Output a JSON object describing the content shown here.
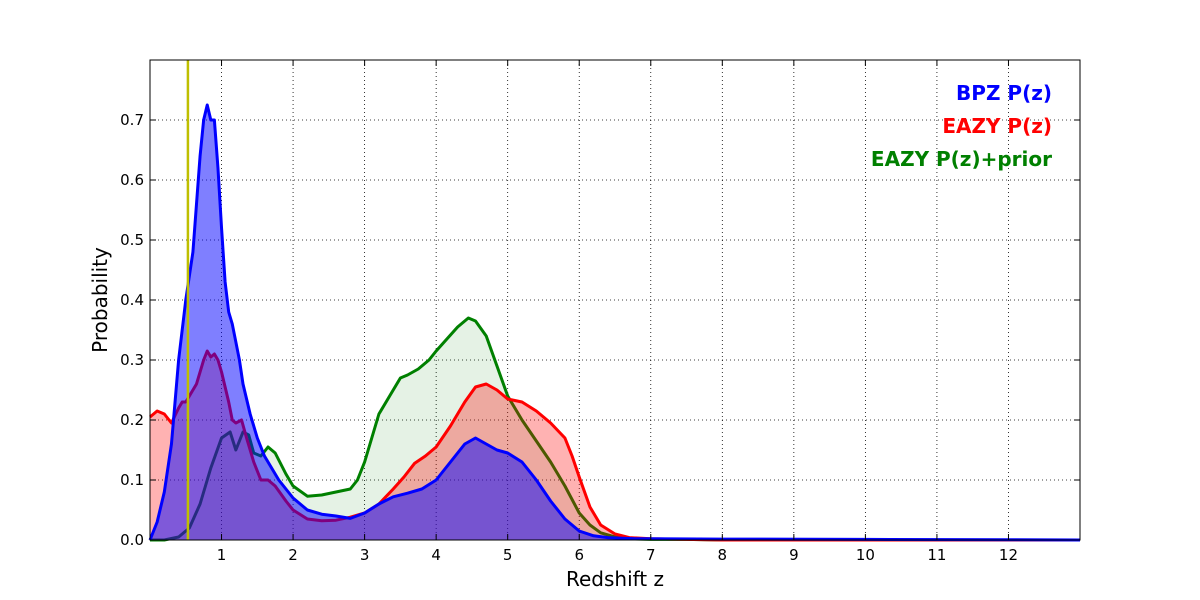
{
  "chart_data": {
    "type": "area",
    "xlabel": "Redshift z",
    "ylabel": "Probability",
    "xlim": [
      0,
      13
    ],
    "ylim": [
      0,
      0.8
    ],
    "xticks": [
      1,
      2,
      3,
      4,
      5,
      6,
      7,
      8,
      9,
      10,
      11,
      12
    ],
    "yticks": [
      0.0,
      0.1,
      0.2,
      0.3,
      0.4,
      0.5,
      0.6,
      0.7
    ],
    "grid": true,
    "legend_position": "top-right",
    "vline": {
      "x": 0.53,
      "color": "#bfbf00"
    },
    "series": [
      {
        "name": "EAZY P(z)+prior",
        "color": "#008000",
        "fill": "#008000",
        "fill_opacity": 0.1,
        "x": [
          0,
          0.2,
          0.4,
          0.55,
          0.7,
          0.85,
          1.0,
          1.12,
          1.2,
          1.3,
          1.38,
          1.45,
          1.55,
          1.65,
          1.75,
          1.9,
          2.0,
          2.2,
          2.4,
          2.6,
          2.8,
          2.9,
          3.0,
          3.1,
          3.2,
          3.35,
          3.5,
          3.6,
          3.75,
          3.9,
          4.0,
          4.15,
          4.3,
          4.45,
          4.55,
          4.7,
          4.85,
          5.0,
          5.2,
          5.4,
          5.6,
          5.8,
          6.0,
          6.15,
          6.3,
          6.5,
          6.7,
          7.0,
          7.5,
          8.0,
          10.0,
          13.0
        ],
        "y": [
          0,
          0.0,
          0.005,
          0.02,
          0.06,
          0.12,
          0.17,
          0.18,
          0.15,
          0.18,
          0.175,
          0.145,
          0.14,
          0.155,
          0.145,
          0.11,
          0.09,
          0.073,
          0.075,
          0.08,
          0.085,
          0.1,
          0.13,
          0.17,
          0.21,
          0.24,
          0.27,
          0.275,
          0.285,
          0.3,
          0.315,
          0.335,
          0.355,
          0.37,
          0.365,
          0.34,
          0.29,
          0.24,
          0.2,
          0.165,
          0.13,
          0.09,
          0.045,
          0.025,
          0.012,
          0.005,
          0.002,
          0.001,
          0.001,
          0.0,
          0.0,
          0.0
        ]
      },
      {
        "name": "EAZY P(z)",
        "color": "#ff0000",
        "fill": "#ff0000",
        "fill_opacity": 0.3,
        "x": [
          0,
          0.1,
          0.2,
          0.3,
          0.4,
          0.45,
          0.5,
          0.55,
          0.65,
          0.75,
          0.8,
          0.85,
          0.9,
          0.95,
          1.0,
          1.05,
          1.1,
          1.15,
          1.2,
          1.28,
          1.35,
          1.45,
          1.55,
          1.65,
          1.75,
          1.9,
          2.0,
          2.2,
          2.4,
          2.6,
          2.8,
          3.0,
          3.2,
          3.4,
          3.55,
          3.7,
          3.85,
          4.0,
          4.2,
          4.4,
          4.55,
          4.7,
          4.85,
          5.0,
          5.2,
          5.4,
          5.6,
          5.8,
          5.9,
          6.0,
          6.15,
          6.3,
          6.5,
          6.7,
          7.0,
          7.5,
          8.0,
          10.0,
          13.0
        ],
        "y": [
          0.205,
          0.215,
          0.21,
          0.195,
          0.22,
          0.23,
          0.23,
          0.24,
          0.26,
          0.3,
          0.315,
          0.305,
          0.31,
          0.3,
          0.28,
          0.255,
          0.23,
          0.2,
          0.195,
          0.2,
          0.17,
          0.13,
          0.1,
          0.1,
          0.09,
          0.065,
          0.05,
          0.035,
          0.032,
          0.033,
          0.038,
          0.045,
          0.06,
          0.085,
          0.105,
          0.128,
          0.14,
          0.155,
          0.19,
          0.23,
          0.255,
          0.26,
          0.25,
          0.235,
          0.23,
          0.215,
          0.195,
          0.17,
          0.14,
          0.105,
          0.055,
          0.025,
          0.01,
          0.004,
          0.002,
          0.001,
          0.0,
          0.0,
          0.0
        ]
      },
      {
        "name": "BPZ P(z)",
        "color": "#0000ff",
        "fill": "#0000ff",
        "fill_opacity": 0.5,
        "x": [
          0,
          0.1,
          0.2,
          0.3,
          0.4,
          0.5,
          0.6,
          0.65,
          0.7,
          0.75,
          0.8,
          0.85,
          0.9,
          0.95,
          1.0,
          1.05,
          1.1,
          1.15,
          1.2,
          1.25,
          1.3,
          1.4,
          1.5,
          1.6,
          1.7,
          1.8,
          2.0,
          2.2,
          2.4,
          2.6,
          2.8,
          3.0,
          3.2,
          3.4,
          3.6,
          3.8,
          4.0,
          4.2,
          4.4,
          4.55,
          4.7,
          4.85,
          5.0,
          5.2,
          5.4,
          5.6,
          5.8,
          6.0,
          6.2,
          6.4,
          6.6,
          6.8,
          7.0,
          8.0,
          10.0,
          12.0,
          13.0
        ],
        "y": [
          0,
          0.03,
          0.08,
          0.16,
          0.3,
          0.4,
          0.48,
          0.56,
          0.64,
          0.7,
          0.725,
          0.7,
          0.7,
          0.62,
          0.52,
          0.43,
          0.38,
          0.36,
          0.33,
          0.3,
          0.26,
          0.21,
          0.17,
          0.14,
          0.12,
          0.1,
          0.07,
          0.05,
          0.043,
          0.04,
          0.036,
          0.045,
          0.06,
          0.072,
          0.078,
          0.085,
          0.1,
          0.13,
          0.16,
          0.17,
          0.16,
          0.15,
          0.145,
          0.13,
          0.1,
          0.065,
          0.035,
          0.015,
          0.007,
          0.004,
          0.003,
          0.002,
          0.002,
          0.0015,
          0.001,
          0.0005,
          0.0
        ]
      }
    ]
  }
}
